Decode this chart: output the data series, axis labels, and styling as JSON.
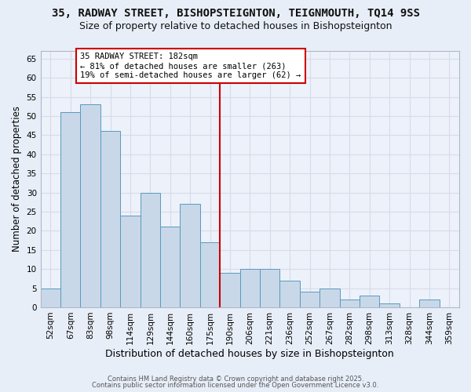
{
  "title1": "35, RADWAY STREET, BISHOPSTEIGNTON, TEIGNMOUTH, TQ14 9SS",
  "title2": "Size of property relative to detached houses in Bishopsteignton",
  "xlabel": "Distribution of detached houses by size in Bishopsteignton",
  "ylabel": "Number of detached properties",
  "footer1": "Contains HM Land Registry data © Crown copyright and database right 2025.",
  "footer2": "Contains public sector information licensed under the Open Government Licence v3.0.",
  "bar_labels": [
    "52sqm",
    "67sqm",
    "83sqm",
    "98sqm",
    "114sqm",
    "129sqm",
    "144sqm",
    "160sqm",
    "175sqm",
    "190sqm",
    "206sqm",
    "221sqm",
    "236sqm",
    "252sqm",
    "267sqm",
    "282sqm",
    "298sqm",
    "313sqm",
    "328sqm",
    "344sqm",
    "359sqm"
  ],
  "bar_values": [
    5,
    51,
    53,
    46,
    24,
    30,
    21,
    27,
    17,
    9,
    10,
    10,
    7,
    4,
    5,
    2,
    3,
    1,
    0,
    2,
    0
  ],
  "bar_color": "#c8d8e8",
  "bar_edge_color": "#5a9abf",
  "ylim": [
    0,
    67
  ],
  "yticks": [
    0,
    5,
    10,
    15,
    20,
    25,
    30,
    35,
    40,
    45,
    50,
    55,
    60,
    65
  ],
  "vline_x_index": 8.5,
  "vline_color": "#cc0000",
  "annotation_line1": "35 RADWAY STREET: 182sqm",
  "annotation_line2": "← 81% of detached houses are smaller (263)",
  "annotation_line3": "19% of semi-detached houses are larger (62) →",
  "annotation_box_color": "#ffffff",
  "annotation_box_edge": "#cc0000",
  "background_color": "#e8eef8",
  "plot_bg_color": "#edf1fa",
  "grid_color": "#d8dce8",
  "title1_fontsize": 10,
  "title2_fontsize": 9,
  "xlabel_fontsize": 9,
  "ylabel_fontsize": 8.5,
  "tick_fontsize": 7.5,
  "annotation_fontsize": 7.5,
  "footer_fontsize": 6.0
}
